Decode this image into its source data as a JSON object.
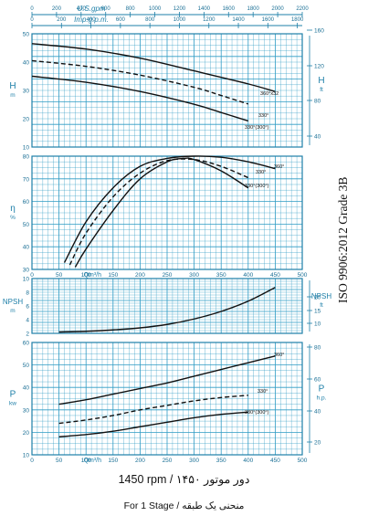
{
  "chart_data": [
    {
      "type": "line",
      "panel": "head",
      "ylabel_left": "H",
      "ylabel_left_unit": "m",
      "ylabel_right": "H",
      "ylabel_right_unit": "ft",
      "ylim": [
        10,
        50
      ],
      "yticks": [
        10,
        20,
        30,
        40,
        50
      ],
      "yticks_right": [
        40,
        80,
        120,
        160
      ],
      "top_axes": [
        {
          "label": "U.S.gpm",
          "ticks": [
            "0",
            "200",
            "400",
            "600",
            "800",
            "1000",
            "1200",
            "1400",
            "1600",
            "1800",
            "2000",
            "2200"
          ]
        },
        {
          "label": "Imp.g.p.m.",
          "ticks": [
            "0",
            "200",
            "400",
            "600",
            "800",
            "1000",
            "1200",
            "1400",
            "1600",
            "1800"
          ]
        }
      ],
      "series": [
        {
          "name": "360°x32",
          "style": "solid",
          "x": [
            0,
            100,
            200,
            300,
            400,
            450
          ],
          "y": [
            46.5,
            44.6,
            41.4,
            36.9,
            32.3,
            29.6
          ]
        },
        {
          "name": "330°",
          "style": "dashed",
          "x": [
            0,
            100,
            200,
            300,
            350,
            400
          ],
          "y": [
            40.5,
            38.5,
            35.4,
            31.1,
            28.2,
            25.2
          ]
        },
        {
          "name": "330°(300°)",
          "style": "solid",
          "x": [
            0,
            100,
            200,
            300,
            350,
            400
          ],
          "y": [
            35.0,
            32.9,
            29.6,
            25.1,
            22.2,
            19.2
          ]
        }
      ]
    },
    {
      "type": "line",
      "panel": "efficiency",
      "ylabel_left": "η",
      "ylabel_left_unit": "%",
      "xlabel": "Q",
      "xlabel_unit": "m³/h",
      "xticks": [
        "0",
        "50",
        "100",
        "150",
        "200",
        "250",
        "300",
        "350",
        "400",
        "450",
        "500"
      ],
      "ylim": [
        30,
        80
      ],
      "yticks": [
        30,
        40,
        50,
        60,
        70,
        80
      ],
      "series": [
        {
          "name": "360°",
          "style": "solid",
          "x": [
            60,
            100,
            150,
            200,
            250,
            300,
            350,
            400,
            450
          ],
          "y": [
            33,
            51,
            66,
            75.5,
            79,
            80,
            79.5,
            77.5,
            74.5
          ]
        },
        {
          "name": "330°",
          "style": "dashed",
          "x": [
            70,
            100,
            150,
            200,
            250,
            300,
            350,
            400
          ],
          "y": [
            32,
            46,
            62,
            72.5,
            78,
            78.5,
            75.5,
            70.5
          ]
        },
        {
          "name": "330°(300°)",
          "style": "solid",
          "x": [
            80,
            100,
            150,
            200,
            250,
            280,
            300,
            350,
            400
          ],
          "y": [
            31,
            39,
            56,
            70,
            77.5,
            79,
            78.5,
            73.5,
            66
          ]
        }
      ]
    },
    {
      "type": "line",
      "panel": "npsh",
      "ylabel_left": "NPSH",
      "ylabel_left_unit": "m",
      "ylabel_right": "NPSH",
      "ylabel_right_unit": "ft",
      "ylim": [
        2,
        10
      ],
      "yticks": [
        2,
        4,
        6,
        8,
        10
      ],
      "yticks_right": [
        10,
        15,
        20
      ],
      "series": [
        {
          "name": "",
          "style": "solid",
          "x": [
            50,
            100,
            150,
            200,
            250,
            300,
            350,
            400,
            450
          ],
          "y": [
            2.2,
            2.3,
            2.5,
            2.8,
            3.3,
            4.1,
            5.2,
            6.7,
            8.7
          ]
        }
      ]
    },
    {
      "type": "line",
      "panel": "power",
      "ylabel_left": "P",
      "ylabel_left_unit": "kw",
      "ylabel_right": "P",
      "ylabel_right_unit": "h.p.",
      "xlabel": "Q",
      "xlabel_unit": "m³/h",
      "xticks": [
        "0",
        "50",
        "100",
        "150",
        "200",
        "250",
        "300",
        "350",
        "400",
        "450",
        "500"
      ],
      "ylim": [
        10,
        60
      ],
      "yticks": [
        10,
        20,
        30,
        40,
        50,
        60
      ],
      "yticks_right": [
        20,
        40,
        60,
        80
      ],
      "series": [
        {
          "name": "360°",
          "style": "solid",
          "x": [
            50,
            100,
            150,
            200,
            250,
            300,
            350,
            400,
            450
          ],
          "y": [
            32.5,
            34.5,
            37,
            39.5,
            42,
            45,
            48,
            51,
            54
          ]
        },
        {
          "name": "330°",
          "style": "dashed",
          "x": [
            50,
            100,
            150,
            200,
            250,
            300,
            350,
            400
          ],
          "y": [
            24,
            25.5,
            27.5,
            30,
            32,
            34,
            35.5,
            36.5
          ]
        },
        {
          "name": "330°(300°)",
          "style": "solid",
          "x": [
            50,
            100,
            150,
            200,
            250,
            300,
            350,
            400
          ],
          "y": [
            18,
            19,
            20.5,
            22.5,
            24.5,
            26.5,
            28,
            29
          ]
        }
      ]
    }
  ],
  "side_text": "ISO 9906:2012 Grade 3B",
  "caption_speed": "1450 rpm / ۱۴۵۰ دور موتور",
  "caption_stage_fa": "منحنی یک طبقه",
  "caption_stage": "For 1 Stage / منحنی یک طبقه",
  "colors": {
    "grid": "#2e9bc4",
    "frame": "#1d7fa8",
    "curve": "#111111",
    "text_blue": "#1a6f95"
  }
}
